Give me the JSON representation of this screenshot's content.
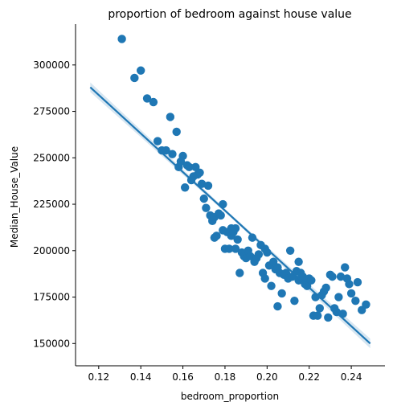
{
  "chart_data": {
    "type": "scatter",
    "title": "proportion of bedroom against house value",
    "xlabel": "bedroom_proportion",
    "ylabel": "Median_House_Value",
    "xlim": [
      0.109,
      0.256
    ],
    "ylim": [
      138000,
      322000
    ],
    "xticks": [
      0.12,
      0.14,
      0.16,
      0.18,
      0.2,
      0.22,
      0.24
    ],
    "xtick_labels": [
      "0.12",
      "0.14",
      "0.16",
      "0.18",
      "0.20",
      "0.22",
      "0.24"
    ],
    "yticks": [
      150000,
      175000,
      200000,
      225000,
      250000,
      275000,
      300000
    ],
    "ytick_labels": [
      "150000",
      "175000",
      "200000",
      "225000",
      "250000",
      "275000",
      "300000"
    ],
    "grid": false,
    "point_color": "#1f77b4",
    "regression": {
      "x_range": [
        0.116,
        0.249
      ],
      "y_start": 288000,
      "y_end": 150000,
      "ci_color": "#1f77b4"
    },
    "points": [
      [
        0.131,
        314000
      ],
      [
        0.137,
        293000
      ],
      [
        0.14,
        297000
      ],
      [
        0.143,
        282000
      ],
      [
        0.146,
        280000
      ],
      [
        0.148,
        259000
      ],
      [
        0.15,
        254000
      ],
      [
        0.152,
        254000
      ],
      [
        0.154,
        272000
      ],
      [
        0.155,
        252000
      ],
      [
        0.157,
        264000
      ],
      [
        0.158,
        245000
      ],
      [
        0.159,
        248000
      ],
      [
        0.16,
        251000
      ],
      [
        0.161,
        234000
      ],
      [
        0.162,
        246000
      ],
      [
        0.163,
        245000
      ],
      [
        0.164,
        238000
      ],
      [
        0.165,
        240000
      ],
      [
        0.166,
        245000
      ],
      [
        0.167,
        241000
      ],
      [
        0.168,
        242000
      ],
      [
        0.169,
        236000
      ],
      [
        0.17,
        228000
      ],
      [
        0.171,
        223000
      ],
      [
        0.172,
        235000
      ],
      [
        0.173,
        219000
      ],
      [
        0.174,
        216000
      ],
      [
        0.175,
        218000
      ],
      [
        0.175,
        207000
      ],
      [
        0.176,
        208000
      ],
      [
        0.177,
        220000
      ],
      [
        0.178,
        219000
      ],
      [
        0.179,
        225000
      ],
      [
        0.179,
        211000
      ],
      [
        0.18,
        201000
      ],
      [
        0.181,
        210000
      ],
      [
        0.182,
        201000
      ],
      [
        0.183,
        212000
      ],
      [
        0.183,
        208000
      ],
      [
        0.184,
        210000
      ],
      [
        0.185,
        212000
      ],
      [
        0.185,
        201000
      ],
      [
        0.186,
        206000
      ],
      [
        0.187,
        188000
      ],
      [
        0.188,
        199000
      ],
      [
        0.189,
        197000
      ],
      [
        0.19,
        196000
      ],
      [
        0.191,
        200000
      ],
      [
        0.192,
        197000
      ],
      [
        0.193,
        207000
      ],
      [
        0.194,
        194000
      ],
      [
        0.195,
        196000
      ],
      [
        0.196,
        198000
      ],
      [
        0.197,
        203000
      ],
      [
        0.198,
        188000
      ],
      [
        0.199,
        201000
      ],
      [
        0.199,
        185000
      ],
      [
        0.2,
        199000
      ],
      [
        0.201,
        192000
      ],
      [
        0.202,
        181000
      ],
      [
        0.203,
        194000
      ],
      [
        0.204,
        190000
      ],
      [
        0.205,
        191000
      ],
      [
        0.205,
        170000
      ],
      [
        0.206,
        188000
      ],
      [
        0.207,
        177000
      ],
      [
        0.208,
        187000
      ],
      [
        0.209,
        188000
      ],
      [
        0.21,
        185000
      ],
      [
        0.211,
        200000
      ],
      [
        0.212,
        186000
      ],
      [
        0.213,
        173000
      ],
      [
        0.214,
        189000
      ],
      [
        0.215,
        194000
      ],
      [
        0.215,
        184000
      ],
      [
        0.216,
        188000
      ],
      [
        0.217,
        186000
      ],
      [
        0.218,
        182000
      ],
      [
        0.219,
        181000
      ],
      [
        0.22,
        185000
      ],
      [
        0.221,
        184000
      ],
      [
        0.222,
        165000
      ],
      [
        0.223,
        175000
      ],
      [
        0.224,
        165000
      ],
      [
        0.225,
        169000
      ],
      [
        0.226,
        176000
      ],
      [
        0.227,
        178000
      ],
      [
        0.228,
        180000
      ],
      [
        0.229,
        164000
      ],
      [
        0.23,
        187000
      ],
      [
        0.231,
        186000
      ],
      [
        0.232,
        169000
      ],
      [
        0.233,
        167000
      ],
      [
        0.234,
        175000
      ],
      [
        0.235,
        186000
      ],
      [
        0.236,
        166000
      ],
      [
        0.237,
        191000
      ],
      [
        0.238,
        185000
      ],
      [
        0.239,
        182000
      ],
      [
        0.24,
        177000
      ],
      [
        0.242,
        173000
      ],
      [
        0.243,
        183000
      ],
      [
        0.245,
        168000
      ],
      [
        0.247,
        171000
      ]
    ]
  }
}
